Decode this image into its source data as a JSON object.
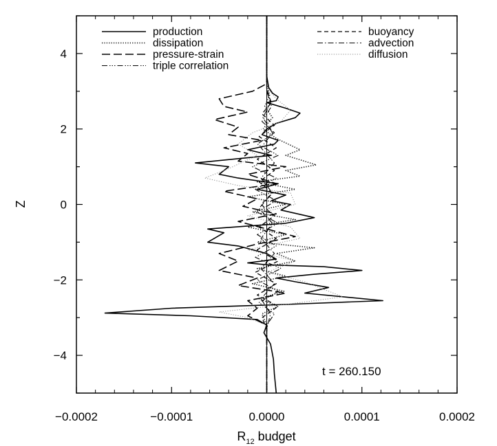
{
  "chart_data": {
    "type": "line",
    "title": "",
    "xlabel_main": "R",
    "xlabel_sub": "12",
    "xlabel_rest": " budget",
    "ylabel": "Z",
    "xlim": [
      -0.0002,
      0.0002
    ],
    "ylim": [
      -5,
      5
    ],
    "x_ticks": [
      -0.0002,
      -0.0001,
      0.0,
      0.0001,
      0.0002
    ],
    "x_tick_labels": [
      "−0.0002",
      "−0.0001",
      "0.0000",
      "0.0001",
      "0.0002"
    ],
    "y_ticks": [
      -4,
      -2,
      0,
      2,
      4
    ],
    "y_tick_labels": [
      "−4",
      "−2",
      "0",
      "2",
      "4"
    ],
    "annotation": "t = 260.150",
    "grid": false,
    "legend_placement": "top",
    "series": [
      {
        "name": "production",
        "style": "solid",
        "width": 1.6,
        "color": "#000000",
        "points": [
          [
            0.0,
            5.0
          ],
          [
            0.0,
            4.0
          ],
          [
            0.0,
            3.4
          ],
          [
            2e-06,
            3.1
          ],
          [
            6e-06,
            2.95
          ],
          [
            1.2e-05,
            2.85
          ],
          [
            1e-05,
            2.75
          ],
          [
            0.0,
            2.7
          ],
          [
            2e-05,
            2.55
          ],
          [
            3.5e-05,
            2.42
          ],
          [
            3e-05,
            2.3
          ],
          [
            1e-05,
            2.15
          ],
          [
            0.0,
            2.0
          ],
          [
            -5e-06,
            1.85
          ],
          [
            1.2e-05,
            1.7
          ],
          [
            8e-06,
            1.6
          ],
          [
            -2e-05,
            1.45
          ],
          [
            5e-06,
            1.3
          ],
          [
            -7.5e-05,
            1.1
          ],
          [
            -4e-05,
            1.0
          ],
          [
            -5e-05,
            0.8
          ],
          [
            -3e-05,
            0.7
          ],
          [
            1.2e-05,
            0.55
          ],
          [
            -1e-05,
            0.4
          ],
          [
            2e-05,
            0.25
          ],
          [
            5e-06,
            0.1
          ],
          [
            2.5e-05,
            0.0
          ],
          [
            1.5e-05,
            -0.15
          ],
          [
            5e-05,
            -0.35
          ],
          [
            2e-05,
            -0.5
          ],
          [
            -6.2e-05,
            -0.65
          ],
          [
            -4.5e-05,
            -0.75
          ],
          [
            -6.2e-05,
            -1.0
          ],
          [
            -3e-05,
            -1.1
          ],
          [
            0.0,
            -1.3
          ],
          [
            1e-05,
            -1.45
          ],
          [
            -2e-05,
            -1.55
          ],
          [
            0.0,
            -1.6
          ],
          [
            6e-05,
            -1.65
          ],
          [
            0.0001,
            -1.75
          ],
          [
            5e-05,
            -1.85
          ],
          [
            1e-05,
            -1.95
          ],
          [
            3e-05,
            -2.05
          ],
          [
            6.5e-05,
            -2.2
          ],
          [
            4e-05,
            -2.35
          ],
          [
            0.000122,
            -2.55
          ],
          [
            2e-05,
            -2.65
          ],
          [
            -0.0001,
            -2.75
          ],
          [
            -0.00017,
            -2.88
          ],
          [
            -8e-05,
            -2.95
          ],
          [
            -1e-05,
            -3.05
          ],
          [
            0.0,
            -3.2
          ],
          [
            -3e-06,
            -3.4
          ],
          [
            4e-06,
            -3.7
          ],
          [
            7e-06,
            -4.1
          ],
          [
            8e-06,
            -4.5
          ],
          [
            1e-05,
            -5.0
          ]
        ]
      },
      {
        "name": "dissipation",
        "style": "dotted",
        "width": 1.6,
        "color": "#000000",
        "points": [
          [
            0.0,
            5.0
          ],
          [
            0.0,
            3.2
          ],
          [
            3e-06,
            2.9
          ],
          [
            -2e-06,
            2.6
          ],
          [
            6e-06,
            2.3
          ],
          [
            -4e-06,
            2.0
          ],
          [
            1e-05,
            1.75
          ],
          [
            3.5e-05,
            1.45
          ],
          [
            2e-05,
            1.3
          ],
          [
            5.2e-05,
            1.05
          ],
          [
            2e-05,
            0.9
          ],
          [
            3.5e-05,
            0.75
          ],
          [
            -1e-05,
            0.6
          ],
          [
            3e-05,
            0.4
          ],
          [
            -2e-05,
            0.2
          ],
          [
            2e-05,
            0.0
          ],
          [
            -1.5e-05,
            -0.2
          ],
          [
            3e-05,
            -0.4
          ],
          [
            -2e-05,
            -0.6
          ],
          [
            2e-05,
            -0.8
          ],
          [
            -1e-05,
            -1.0
          ],
          [
            5e-05,
            -1.15
          ],
          [
            1e-05,
            -1.3
          ],
          [
            3e-05,
            -1.5
          ],
          [
            -1e-05,
            -1.7
          ],
          [
            2e-05,
            -1.9
          ],
          [
            -1.5e-05,
            -2.1
          ],
          [
            1.8e-05,
            -2.3
          ],
          [
            -8e-06,
            -2.5
          ],
          [
            1.2e-05,
            -2.7
          ],
          [
            -5e-06,
            -2.9
          ],
          [
            0.0,
            -3.2
          ],
          [
            0.0,
            -5.0
          ]
        ]
      },
      {
        "name": "pressure-strain",
        "style": "longdash",
        "width": 1.6,
        "color": "#000000",
        "points": [
          [
            0.0,
            5.0
          ],
          [
            0.0,
            3.2
          ],
          [
            -1.5e-05,
            3.0
          ],
          [
            -5e-05,
            2.8
          ],
          [
            -4.5e-05,
            2.6
          ],
          [
            -2e-05,
            2.45
          ],
          [
            -5.5e-05,
            2.25
          ],
          [
            -3e-05,
            2.05
          ],
          [
            -4e-05,
            1.85
          ],
          [
            -5e-06,
            1.7
          ],
          [
            -4.5e-05,
            1.5
          ],
          [
            -2e-05,
            1.35
          ],
          [
            -3e-05,
            1.15
          ],
          [
            2e-05,
            1.0
          ],
          [
            -2e-05,
            0.8
          ],
          [
            1e-05,
            0.55
          ],
          [
            -4.5e-05,
            0.35
          ],
          [
            -1e-05,
            0.15
          ],
          [
            -2.5e-05,
            -0.05
          ],
          [
            1e-05,
            -0.25
          ],
          [
            -3e-05,
            -0.45
          ],
          [
            0.0,
            -0.65
          ],
          [
            3e-05,
            -0.85
          ],
          [
            -1e-05,
            -1.05
          ],
          [
            -5e-05,
            -1.3
          ],
          [
            -3e-05,
            -1.5
          ],
          [
            -5e-05,
            -1.75
          ],
          [
            -1e-05,
            -1.95
          ],
          [
            -3e-05,
            -2.15
          ],
          [
            2e-05,
            -2.35
          ],
          [
            -2e-05,
            -2.55
          ],
          [
            -1e-05,
            -2.75
          ],
          [
            -2e-05,
            -2.95
          ],
          [
            0.0,
            -3.2
          ],
          [
            0.0,
            -5.0
          ]
        ]
      },
      {
        "name": "triple correlation",
        "style": "dashdotdotdot",
        "width": 1.1,
        "color": "#000000",
        "points": [
          [
            0.0,
            5.0
          ],
          [
            0.0,
            3.0
          ],
          [
            5e-06,
            2.6
          ],
          [
            -5e-06,
            2.2
          ],
          [
            8e-06,
            1.9
          ],
          [
            -1e-05,
            1.6
          ],
          [
            1.2e-05,
            1.3
          ],
          [
            -1.5e-05,
            1.0
          ],
          [
            1e-05,
            0.7
          ],
          [
            -1.2e-05,
            0.4
          ],
          [
            1e-05,
            0.1
          ],
          [
            -1e-05,
            -0.2
          ],
          [
            1.2e-05,
            -0.5
          ],
          [
            -1e-05,
            -0.8
          ],
          [
            1e-05,
            -1.1
          ],
          [
            -1.2e-05,
            -1.4
          ],
          [
            1.5e-05,
            -1.7
          ],
          [
            -1e-05,
            -2.0
          ],
          [
            1.2e-05,
            -2.3
          ],
          [
            -8e-06,
            -2.6
          ],
          [
            8e-06,
            -2.9
          ],
          [
            0.0,
            -3.2
          ],
          [
            0.0,
            -5.0
          ]
        ]
      },
      {
        "name": "buoyancy",
        "style": "shortdash",
        "width": 1.3,
        "color": "#000000",
        "points": [
          [
            0.0,
            5.0
          ],
          [
            0.0,
            3.0
          ],
          [
            5e-06,
            2.7
          ],
          [
            -5e-06,
            2.4
          ],
          [
            8e-06,
            2.1
          ],
          [
            -8e-06,
            1.8
          ],
          [
            1e-05,
            1.5
          ],
          [
            -1e-05,
            1.2
          ],
          [
            8e-06,
            0.9
          ],
          [
            -8e-06,
            0.6
          ],
          [
            6e-06,
            0.3
          ],
          [
            -6e-06,
            0.0
          ],
          [
            8e-06,
            -0.3
          ],
          [
            -8e-06,
            -0.6
          ],
          [
            1e-05,
            -0.9
          ],
          [
            -1e-05,
            -1.2
          ],
          [
            1.2e-05,
            -1.5
          ],
          [
            -1.2e-05,
            -1.8
          ],
          [
            1e-05,
            -2.1
          ],
          [
            -1e-05,
            -2.4
          ],
          [
            1.2e-05,
            -2.7
          ],
          [
            -5e-06,
            -3.0
          ],
          [
            0.0,
            -3.3
          ],
          [
            0.0,
            -5.0
          ]
        ]
      },
      {
        "name": "advection",
        "style": "dashdot",
        "width": 1.1,
        "color": "#000000",
        "points": [
          [
            0.0,
            5.0
          ],
          [
            0.0,
            3.1
          ],
          [
            4e-06,
            2.7
          ],
          [
            -4e-06,
            2.3
          ],
          [
            6e-06,
            1.9
          ],
          [
            -6e-06,
            1.5
          ],
          [
            8e-06,
            1.1
          ],
          [
            -6e-06,
            0.7
          ],
          [
            6e-06,
            0.3
          ],
          [
            -8e-06,
            -0.1
          ],
          [
            6e-06,
            -0.5
          ],
          [
            -6e-06,
            -0.9
          ],
          [
            8e-06,
            -1.3
          ],
          [
            -6e-06,
            -1.7
          ],
          [
            8e-06,
            -2.1
          ],
          [
            -6e-06,
            -2.5
          ],
          [
            4e-06,
            -2.9
          ],
          [
            0.0,
            -3.3
          ],
          [
            0.0,
            -5.0
          ]
        ]
      },
      {
        "name": "diffusion",
        "style": "dotted",
        "width": 1.0,
        "color": "#888888",
        "points": [
          [
            0.0,
            5.0
          ],
          [
            0.0,
            3.1
          ],
          [
            1e-05,
            2.8
          ],
          [
            2.5e-05,
            2.5
          ],
          [
            1.5e-05,
            2.2
          ],
          [
            -1.5e-05,
            1.9
          ],
          [
            -3e-05,
            1.6
          ],
          [
            -1e-05,
            1.3
          ],
          [
            -4e-05,
            0.95
          ],
          [
            -6.5e-05,
            0.7
          ],
          [
            -3e-05,
            0.5
          ],
          [
            2.5e-05,
            0.3
          ],
          [
            3e-05,
            0.0
          ],
          [
            -2e-05,
            -0.3
          ],
          [
            2.5e-05,
            -0.6
          ],
          [
            3.5e-05,
            -0.9
          ],
          [
            -2e-05,
            -1.2
          ],
          [
            3e-05,
            -1.5
          ],
          [
            0.0,
            -1.8
          ],
          [
            4e-05,
            -2.05
          ],
          [
            8e-05,
            -2.45
          ],
          [
            2e-05,
            -2.65
          ],
          [
            -5e-05,
            -2.85
          ],
          [
            -2e-05,
            -3.0
          ],
          [
            0.0,
            -3.2
          ],
          [
            0.0,
            -5.0
          ]
        ]
      }
    ]
  }
}
